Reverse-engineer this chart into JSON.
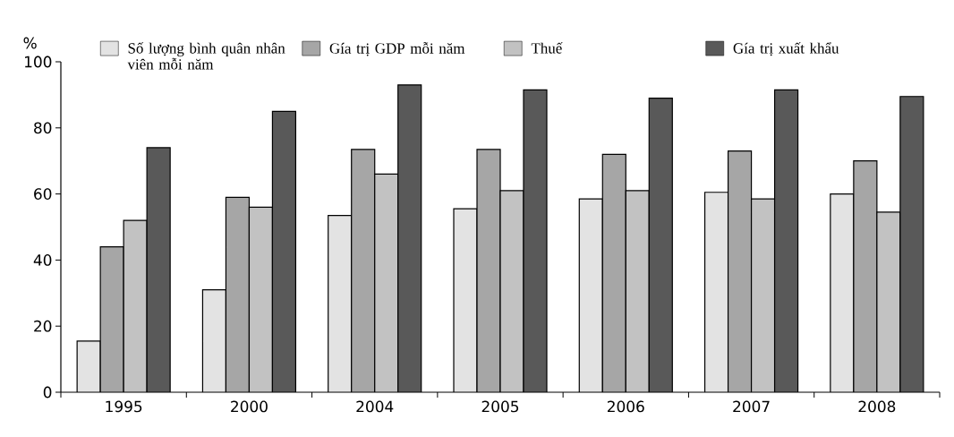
{
  "chart_data": {
    "type": "bar",
    "ylabel": "%",
    "categories": [
      "1995",
      "2000",
      "2004",
      "2005",
      "2006",
      "2007",
      "2008"
    ],
    "series": [
      {
        "name": "Số lượng bình quân nhân viên mỗi năm",
        "color": "#e3e3e3",
        "values": [
          15.5,
          31,
          53.5,
          55.5,
          58.5,
          60.5,
          60
        ]
      },
      {
        "name": "Gía trị GDP mỗi năm",
        "color": "#a6a6a6",
        "values": [
          44,
          59,
          73.5,
          73.5,
          72,
          73,
          70
        ]
      },
      {
        "name": "Thuế",
        "color": "#c2c2c2",
        "values": [
          52,
          56,
          66,
          61,
          61,
          58.5,
          54.5
        ]
      },
      {
        "name": "Gía trị xuất khẩu",
        "color": "#595959",
        "values": [
          74,
          85,
          93,
          91.5,
          89,
          91.5,
          89.5
        ]
      }
    ],
    "ylim": [
      0,
      100
    ],
    "yticks": [
      0,
      20,
      40,
      60,
      80,
      100
    ],
    "grid": false,
    "legend": "top"
  }
}
